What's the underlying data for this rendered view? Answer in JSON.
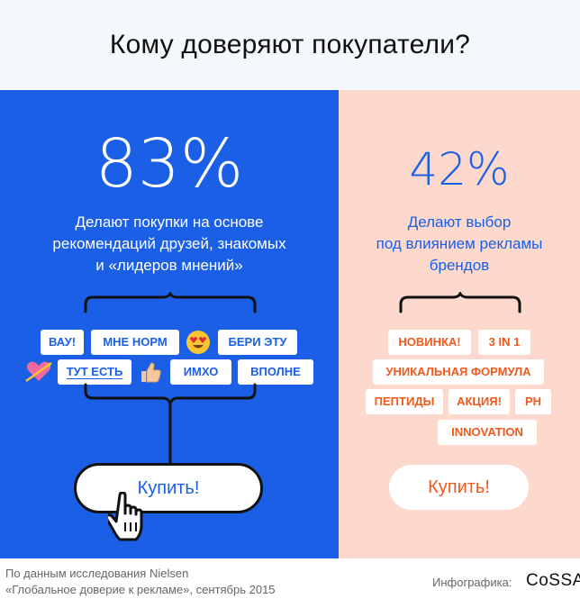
{
  "header": {
    "title": "Кому доверяют покупатели?"
  },
  "left": {
    "percent": "83%",
    "description": [
      "Делают покупки на основе",
      "рекомендаций друзей, знакомых",
      "и «лидеров мнений»"
    ],
    "tags": [
      "ВАУ!",
      "МНЕ НОРМ",
      "БЕРИ ЭТУ",
      "ТУТ ЕСТЬ",
      "ИМХО",
      "ВПОЛНЕ"
    ],
    "emojis": [
      "heart-eyes-emoji",
      "heart-arrow-emoji",
      "thumbs-up-emoji"
    ],
    "buy_label": "Купить!",
    "accent": "#1a5fe6"
  },
  "right": {
    "percent": "42%",
    "description": [
      "Делают выбор",
      "под влиянием рекламы",
      "брендов"
    ],
    "tags": [
      "НОВИНКА!",
      "3 IN 1",
      "УНИКАЛЬНАЯ ФОРМУЛА",
      "ПЕПТИДЫ",
      "АКЦИЯ!",
      "PH",
      "INNOVATION"
    ],
    "buy_label": "Купить!",
    "accent": "#f05a1c",
    "background": "#fcd9cc"
  },
  "footer": {
    "source": [
      "По данным исследования Nielsen",
      "«Глобальное доверие к рекламе», сентябрь 2015"
    ],
    "credit": "Инфографика:",
    "logo": "CoSSA"
  }
}
